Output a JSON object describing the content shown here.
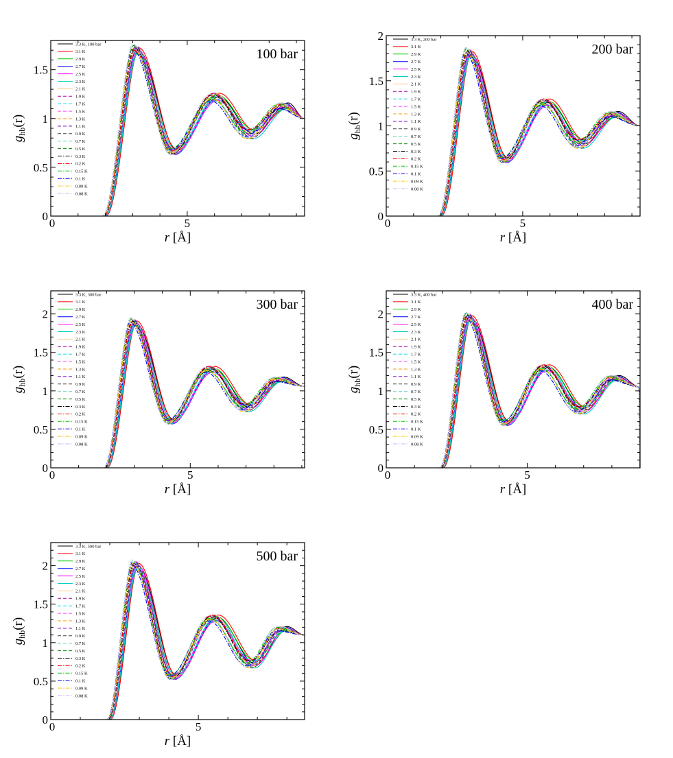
{
  "temperatures": [
    "3.3 K",
    "3.1 K",
    "2.9 K",
    "2.7 K",
    "2.5 K",
    "2.3 K",
    "2.1 K",
    "1.9 K",
    "1.7 K",
    "1.5 K",
    "1.3 K",
    "1.1 K",
    "0.9 K",
    "0.7 K",
    "0.5 K",
    "0.3 K",
    "0.2 K",
    "0.15 K",
    "0.1 K",
    "0.09 K",
    "0.08 K"
  ],
  "series_styles": [
    {
      "color": "#000000",
      "dash": "solid"
    },
    {
      "color": "#ff0000",
      "dash": "solid"
    },
    {
      "color": "#00cc00",
      "dash": "solid"
    },
    {
      "color": "#0000ff",
      "dash": "solid"
    },
    {
      "color": "#ff00ff",
      "dash": "solid"
    },
    {
      "color": "#00cccc",
      "dash": "solid"
    },
    {
      "color": "#ffcc88",
      "dash": "solid"
    },
    {
      "color": "#aa00aa",
      "dash": "dash"
    },
    {
      "color": "#00dddd",
      "dash": "dash"
    },
    {
      "color": "#ff44ff",
      "dash": "dash"
    },
    {
      "color": "#ff9900",
      "dash": "dash"
    },
    {
      "color": "#6600cc",
      "dash": "dash"
    },
    {
      "color": "#444444",
      "dash": "dash"
    },
    {
      "color": "#66cccc",
      "dash": "dash"
    },
    {
      "color": "#008800",
      "dash": "dash"
    },
    {
      "color": "#000000",
      "dash": "dashdot"
    },
    {
      "color": "#ff0000",
      "dash": "dashdot"
    },
    {
      "color": "#00cc00",
      "dash": "dashdot"
    },
    {
      "color": "#0000ff",
      "dash": "dashdot"
    },
    {
      "color": "#ffcc00",
      "dash": "dashdot"
    },
    {
      "color": "#bbbbee",
      "dash": "dashdot"
    }
  ],
  "chart_data": [
    {
      "type": "line",
      "annotation": "100 bar",
      "legend_first_label": "3.3 K, 100 bar",
      "xlabel_r": "r",
      "xlabel_unit": "[Å]",
      "ylabel_g": "g",
      "ylabel_sub": "hb",
      "ylabel_arg": "(r)",
      "xlim": [
        0,
        9.3
      ],
      "ylim": [
        0,
        1.8
      ],
      "xticks": [
        0,
        5
      ],
      "yticks": [
        0,
        0.5,
        1,
        1.5
      ],
      "ytick_labels": [
        "0",
        "0.5",
        "1",
        "1.5"
      ],
      "grid": false,
      "legend": "top-left",
      "curve": {
        "r0": 2.0,
        "h1": 1.7,
        "r1": 3.2,
        "m1": 0.66,
        "p1": 4.6,
        "h2": 1.22,
        "r2": 6.15,
        "m2": 0.84,
        "p2": 7.45,
        "h3": 1.13,
        "r3": 8.7,
        "endv": 1.0,
        "rend": 9.3
      }
    },
    {
      "type": "line",
      "annotation": "200 bar",
      "legend_first_label": "3.3 K, 200 bar",
      "xlabel_r": "r",
      "xlabel_unit": "[Å]",
      "ylabel_g": "g",
      "ylabel_sub": "hb",
      "ylabel_arg": "(r)",
      "xlim": [
        0,
        9.3
      ],
      "ylim": [
        0,
        2
      ],
      "xticks": [
        0,
        5
      ],
      "yticks": [
        0,
        0.5,
        1,
        1.5,
        2
      ],
      "ytick_labels": [
        "0",
        "0.5",
        "1",
        "1.5",
        "2"
      ],
      "grid": false,
      "legend": "top-left",
      "curve": {
        "r0": 2.0,
        "h1": 1.8,
        "r1": 3.1,
        "m1": 0.62,
        "p1": 4.45,
        "h2": 1.26,
        "r2": 5.95,
        "m2": 0.8,
        "p2": 7.25,
        "h3": 1.13,
        "r3": 8.5,
        "endv": 1.0,
        "rend": 9.3
      }
    },
    {
      "type": "line",
      "annotation": "300 bar",
      "legend_first_label": "3.3 K, 300 bar",
      "xlabel_r": "r",
      "xlabel_unit": "[Å]",
      "ylabel_g": "g",
      "ylabel_sub": "hb",
      "ylabel_arg": "(r)",
      "xlim": [
        0,
        9.1
      ],
      "ylim": [
        0,
        2.3
      ],
      "xticks": [
        0,
        5
      ],
      "yticks": [
        0,
        0.5,
        1,
        1.5,
        2
      ],
      "ytick_labels": [
        "0",
        "0.5",
        "1",
        "1.5",
        "2"
      ],
      "grid": false,
      "legend": "top-left",
      "curve": {
        "r0": 2.0,
        "h1": 1.88,
        "r1": 3.05,
        "m1": 0.6,
        "p1": 4.4,
        "h2": 1.28,
        "r2": 5.85,
        "m2": 0.78,
        "p2": 7.15,
        "h3": 1.15,
        "r3": 8.35,
        "endv": 1.06,
        "rend": 9.1
      }
    },
    {
      "type": "line",
      "annotation": "400 bar",
      "legend_first_label": "3.3 K, 400 bar",
      "xlabel_r": "r",
      "xlabel_unit": "[Å]",
      "ylabel_g": "g",
      "ylabel_sub": "hb",
      "ylabel_arg": "(r)",
      "xlim": [
        0,
        9.0
      ],
      "ylim": [
        0,
        2.3
      ],
      "xticks": [
        0,
        5
      ],
      "yticks": [
        0,
        0.5,
        1,
        1.5,
        2
      ],
      "ytick_labels": [
        "0",
        "0.5",
        "1",
        "1.5",
        "2"
      ],
      "grid": false,
      "legend": "top-left",
      "curve": {
        "r0": 2.0,
        "h1": 1.95,
        "r1": 3.0,
        "m1": 0.58,
        "p1": 4.35,
        "h2": 1.3,
        "r2": 5.75,
        "m2": 0.75,
        "p2": 7.05,
        "h3": 1.17,
        "r3": 8.25,
        "endv": 1.05,
        "rend": 9.0,
        "drop_to_zero": true
      }
    },
    {
      "type": "line",
      "annotation": "500 bar",
      "legend_first_label": "3.3 K, 500 bar",
      "xlabel_r": "r",
      "xlabel_unit": "[Å]",
      "ylabel_g": "g",
      "ylabel_sub": "hb",
      "ylabel_arg": "(r)",
      "xlim": [
        0,
        8.6
      ],
      "ylim": [
        0,
        2.3
      ],
      "xticks": [
        0,
        5
      ],
      "yticks": [
        0,
        0.5,
        1,
        1.5,
        2
      ],
      "ytick_labels": [
        "0",
        "0.5",
        "1",
        "1.5",
        "2"
      ],
      "grid": false,
      "legend": "top-left",
      "curve": {
        "r0": 2.0,
        "h1": 2.0,
        "r1": 2.95,
        "m1": 0.55,
        "p1": 4.25,
        "h2": 1.32,
        "r2": 5.65,
        "m2": 0.72,
        "p2": 6.95,
        "h3": 1.18,
        "r3": 8.0,
        "endv": 1.1,
        "rend": 8.6
      }
    }
  ]
}
